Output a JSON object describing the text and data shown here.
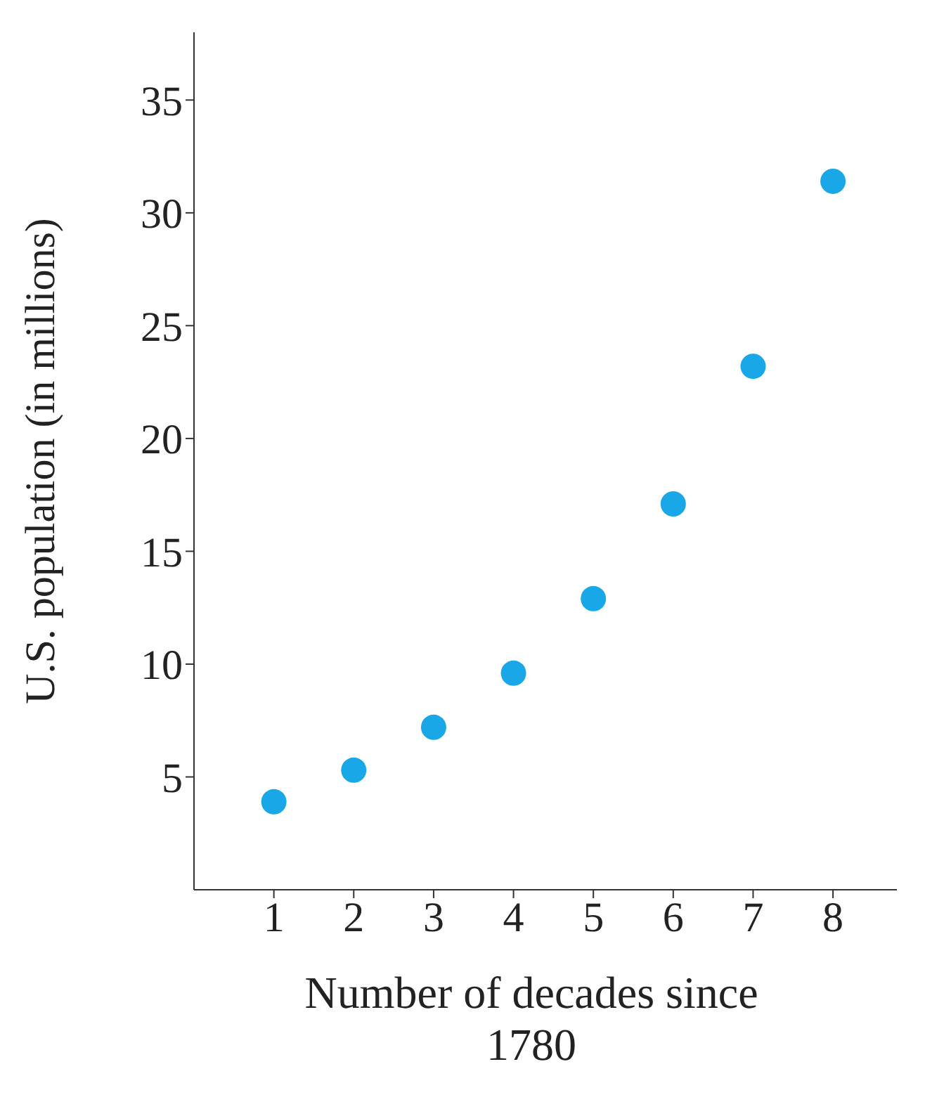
{
  "chart_data": {
    "type": "scatter",
    "xlabel": "Number of decades since 1780",
    "ylabel": "U.S. population (in millions)",
    "x": [
      1,
      2,
      3,
      4,
      5,
      6,
      7,
      8
    ],
    "series": [
      {
        "color": "#1aa7e8",
        "values": [
          3.9,
          5.3,
          7.2,
          9.6,
          12.9,
          17.1,
          23.2,
          31.4
        ]
      }
    ],
    "xlim": [
      0,
      8.8
    ],
    "xticks": [
      1,
      2,
      3,
      4,
      5,
      6,
      7,
      8
    ],
    "ylim": [
      0,
      38
    ],
    "yticks": [
      5,
      10,
      15,
      20,
      25,
      30,
      35
    ],
    "grid": false,
    "legend": false,
    "marker": "circle"
  }
}
